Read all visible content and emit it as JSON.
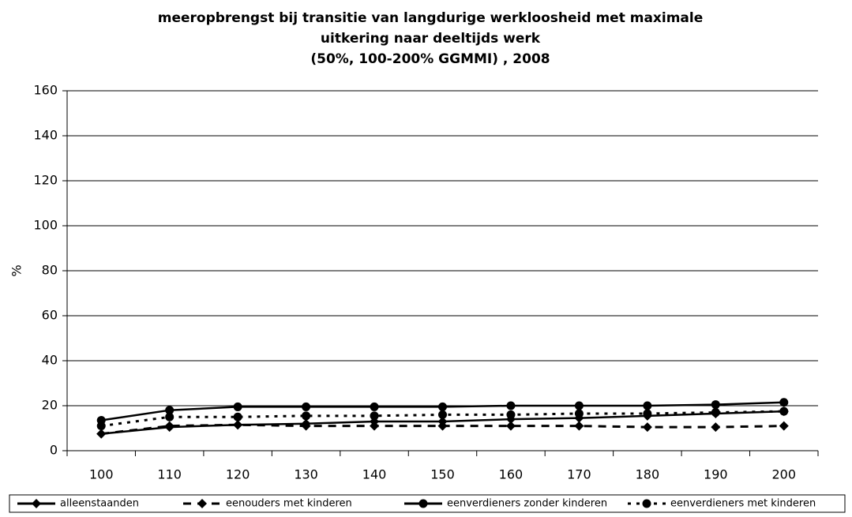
{
  "chart_data": {
    "type": "line",
    "title": [
      "meeropbrengst bij transitie van langdurige werkloosheid met maximale",
      "uitkering naar deeltijds werk",
      "(50%, 100-200% GGMMI) , 2008"
    ],
    "y_label": "%",
    "categories": [
      "100",
      "110",
      "120",
      "130",
      "140",
      "150",
      "160",
      "170",
      "180",
      "190",
      "200"
    ],
    "series": [
      {
        "name": "alleenstaanden",
        "color": "#000000",
        "style": "solid",
        "marker": "diamond",
        "values": [
          7.5,
          10.5,
          11.5,
          12,
          13,
          13,
          14,
          14.5,
          15.5,
          16.5,
          17.5
        ]
      },
      {
        "name": "eenouders met kinderen",
        "color": "#000000",
        "style": "dashed",
        "marker": "diamond",
        "values": [
          7.5,
          11,
          11.5,
          11,
          11,
          11,
          11,
          11,
          10.5,
          10.5,
          11
        ]
      },
      {
        "name": "eenverdieners zonder kinderen",
        "color": "#000000",
        "style": "solid",
        "marker": "circle",
        "values": [
          13.5,
          18,
          19.5,
          19.5,
          19.5,
          19.5,
          20,
          20,
          20,
          20.5,
          21.5
        ]
      },
      {
        "name": "eenverdieners met kinderen",
        "color": "#000000",
        "style": "dotted",
        "marker": "circle",
        "values": [
          11,
          15,
          15,
          15.5,
          15.5,
          16,
          16,
          16.5,
          16.5,
          17,
          17.5
        ]
      }
    ],
    "ylim": [
      0,
      160
    ],
    "yticks": [
      0,
      20,
      40,
      60,
      80,
      100,
      120,
      140,
      160
    ],
    "grid": true,
    "legend": "bottom"
  }
}
